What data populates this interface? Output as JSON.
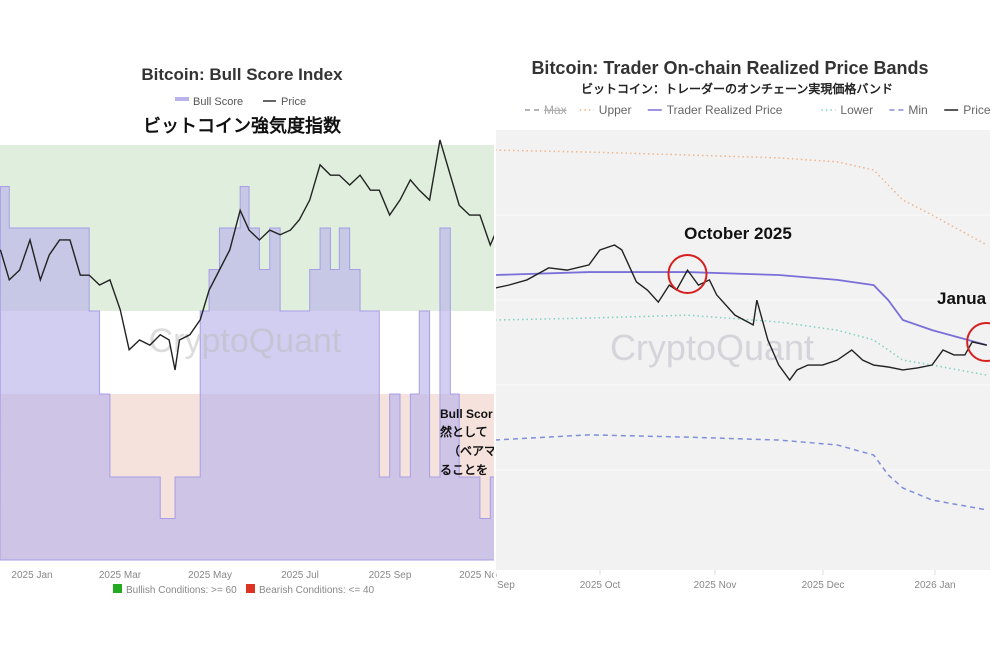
{
  "chart_data": [
    {
      "type": "area",
      "title": "Bitcoin: Bull Score Index",
      "subtitle": "ビットコイン強気度指数",
      "legend": [
        "Bull Score",
        "Price"
      ],
      "legend_placement": "top",
      "x_tick_labels": [
        "2025 Jan",
        "2025 Mar",
        "2025 May",
        "2025 Jul",
        "2025 Sep",
        "2025 No"
      ],
      "footer_legend": [
        {
          "label": "Bullish Conditions: >= 60",
          "color": "#22aa22"
        },
        {
          "label": "Bearish Conditions: <= 40",
          "color": "#dd3322"
        }
      ],
      "zones": {
        "bullish_min": 60,
        "bearish_max": 40,
        "bullish_color": "#dfeedd",
        "bearish_color": "#f6e2dc"
      },
      "watermark": "CryptoQuant",
      "overlay_text": [
        "Bull Scor",
        "然として",
        "（ベアマ",
        "ることを"
      ],
      "bull_score_range": [
        0,
        100
      ],
      "colors": {
        "bull_score": "#b9b3ea",
        "price": "#222222"
      },
      "series": [
        {
          "name": "Bull Score",
          "x": [
            "2024-12-12",
            "2024-12-18",
            "2024-12-25",
            "2025-01-01",
            "2025-01-08",
            "2025-01-14",
            "2025-01-21",
            "2025-01-28",
            "2025-02-04",
            "2025-02-10",
            "2025-02-17",
            "2025-02-24",
            "2025-03-03",
            "2025-03-09",
            "2025-03-16",
            "2025-03-23",
            "2025-03-30",
            "2025-04-05",
            "2025-04-09",
            "2025-04-12",
            "2025-04-19",
            "2025-04-26",
            "2025-05-02",
            "2025-05-09",
            "2025-05-16",
            "2025-05-23",
            "2025-05-29",
            "2025-06-05",
            "2025-06-12",
            "2025-06-19",
            "2025-06-26",
            "2025-07-02",
            "2025-07-09",
            "2025-07-16",
            "2025-07-23",
            "2025-07-29",
            "2025-08-05",
            "2025-08-12",
            "2025-08-19",
            "2025-08-25",
            "2025-09-01",
            "2025-09-08",
            "2025-09-15",
            "2025-09-21",
            "2025-09-28",
            "2025-10-05",
            "2025-10-12",
            "2025-10-18",
            "2025-10-25",
            "2025-11-01",
            "2025-11-08",
            "2025-11-11"
          ],
          "values": [
            90,
            80,
            80,
            80,
            80,
            80,
            80,
            80,
            80,
            60,
            40,
            20,
            20,
            20,
            20,
            20,
            10,
            10,
            20,
            20,
            20,
            60,
            70,
            80,
            80,
            90,
            80,
            70,
            80,
            60,
            60,
            60,
            70,
            80,
            70,
            80,
            70,
            60,
            60,
            20,
            40,
            20,
            40,
            60,
            20,
            80,
            40,
            20,
            20,
            10,
            20,
            20
          ]
        },
        {
          "name": "Price",
          "x": [
            "2024-12-12",
            "2024-12-18",
            "2024-12-25",
            "2025-01-01",
            "2025-01-08",
            "2025-01-14",
            "2025-01-21",
            "2025-01-28",
            "2025-02-04",
            "2025-02-10",
            "2025-02-17",
            "2025-02-24",
            "2025-03-03",
            "2025-03-09",
            "2025-03-16",
            "2025-03-23",
            "2025-03-30",
            "2025-04-05",
            "2025-04-09",
            "2025-04-12",
            "2025-04-19",
            "2025-04-26",
            "2025-05-02",
            "2025-05-09",
            "2025-05-16",
            "2025-05-23",
            "2025-05-29",
            "2025-06-05",
            "2025-06-12",
            "2025-06-19",
            "2025-06-26",
            "2025-07-02",
            "2025-07-09",
            "2025-07-16",
            "2025-07-23",
            "2025-07-29",
            "2025-08-05",
            "2025-08-12",
            "2025-08-19",
            "2025-08-25",
            "2025-09-01",
            "2025-09-08",
            "2025-09-15",
            "2025-09-21",
            "2025-09-28",
            "2025-10-05",
            "2025-10-12",
            "2025-10-18",
            "2025-10-25",
            "2025-11-01",
            "2025-11-08",
            "2025-11-11"
          ],
          "values": [
            100600,
            94200,
            96300,
            102700,
            94200,
            99500,
            102700,
            102700,
            95200,
            95200,
            93100,
            94200,
            87800,
            79300,
            81400,
            80300,
            82500,
            81400,
            75000,
            81400,
            82500,
            85700,
            92000,
            96300,
            100600,
            109000,
            104800,
            102700,
            104800,
            103800,
            104800,
            107000,
            111200,
            118700,
            116500,
            116500,
            114400,
            116500,
            113300,
            113300,
            108000,
            111200,
            115500,
            113300,
            111200,
            124000,
            116500,
            110100,
            108000,
            108000,
            101600,
            103800
          ]
        }
      ]
    },
    {
      "type": "line",
      "title": "Bitcoin: Trader On-chain Realized Price Bands",
      "subtitle": "ビットコイン：トレーダーのオンチェーン実現価格バンド",
      "legend": [
        {
          "label": "Max",
          "style": "dashed",
          "disabled": true,
          "color": "#9a9aaa"
        },
        {
          "label": "Upper",
          "style": "dotted",
          "color": "#f0b48a"
        },
        {
          "label": "Trader Realized Price",
          "style": "solid",
          "color": "#7a6fd8"
        },
        {
          "label": "Lower",
          "style": "dotted",
          "color": "#7fd1c0"
        },
        {
          "label": "Min",
          "style": "dashed",
          "color": "#7f8fd8"
        },
        {
          "label": "Price",
          "style": "solid",
          "color": "#222222"
        }
      ],
      "legend_placement": "top",
      "x_tick_labels": [
        "Sep",
        "2025 Oct",
        "2025 Nov",
        "2025 Dec",
        "2026 Jan"
      ],
      "watermark": "CryptoQuant",
      "annotations": [
        {
          "text": "October 2025",
          "at": "2025-10-21",
          "circle_color": "#d62020"
        },
        {
          "text": "Janua",
          "at": "2026-01-10",
          "circle_color": "#d62020"
        }
      ],
      "band_dates": [
        "2025-08-29",
        "2025-09-24",
        "2025-10-21",
        "2025-11-15",
        "2025-12-01",
        "2025-12-11",
        "2025-12-15",
        "2025-12-19",
        "2025-12-27",
        "2026-01-11"
      ],
      "series": [
        {
          "name": "Upper",
          "values": [
            155100,
            154500,
            153600,
            152700,
            151500,
            149000,
            144400,
            139800,
            135200,
            126000
          ]
        },
        {
          "name": "Trader Realized Price",
          "values": [
            116800,
            117700,
            117700,
            116800,
            115300,
            113700,
            109100,
            103000,
            99900,
            95300
          ]
        },
        {
          "name": "Lower",
          "values": [
            103000,
            103600,
            104500,
            102400,
            99900,
            96900,
            93800,
            90700,
            89200,
            86100
          ]
        },
        {
          "name": "Min",
          "values": [
            66200,
            67800,
            67100,
            66200,
            64700,
            61600,
            55500,
            51500,
            47800,
            44800
          ]
        },
        {
          "name": "Price",
          "x": [
            "2025-08-29",
            "2025-09-02",
            "2025-09-07",
            "2025-09-13",
            "2025-09-18",
            "2025-09-24",
            "2025-09-27",
            "2025-10-01",
            "2025-10-03",
            "2025-10-07",
            "2025-10-10",
            "2025-10-13",
            "2025-10-16",
            "2025-10-18",
            "2025-10-21",
            "2025-10-24",
            "2025-10-27",
            "2025-10-29",
            "2025-11-03",
            "2025-11-08",
            "2025-11-09",
            "2025-11-12",
            "2025-11-15",
            "2025-11-18",
            "2025-11-20",
            "2025-11-23",
            "2025-11-27",
            "2025-12-01",
            "2025-12-05",
            "2025-12-08",
            "2025-12-11",
            "2025-12-15",
            "2025-12-19",
            "2025-12-23",
            "2025-12-27",
            "2025-12-30",
            "2026-01-02",
            "2026-01-05",
            "2026-01-07",
            "2026-01-11"
          ],
          "values": [
            112800,
            113700,
            115300,
            119000,
            118300,
            119900,
            124500,
            126000,
            124500,
            114700,
            112200,
            108500,
            113700,
            112200,
            118300,
            113700,
            115300,
            110700,
            104500,
            101500,
            109100,
            96900,
            89200,
            84600,
            87700,
            89200,
            89200,
            90700,
            93800,
            90700,
            89200,
            88600,
            87700,
            88300,
            89200,
            93800,
            92300,
            92300,
            96300,
            95300
          ]
        }
      ]
    }
  ]
}
